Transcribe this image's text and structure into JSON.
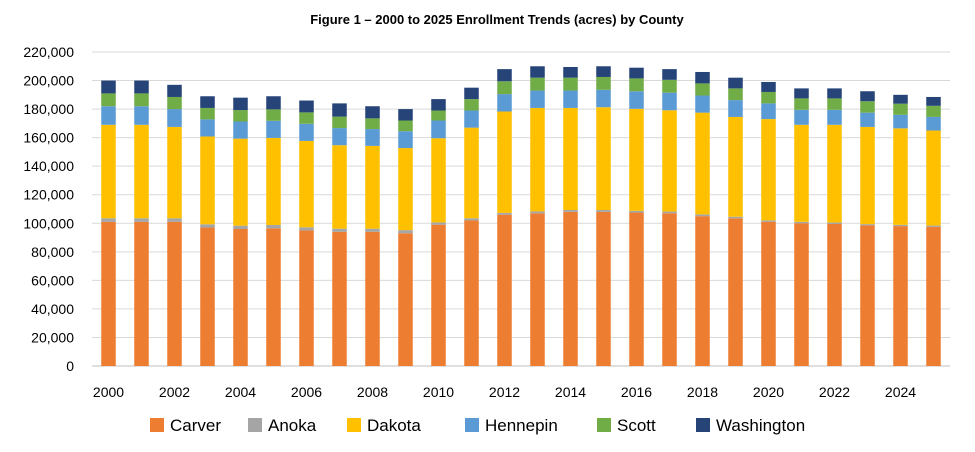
{
  "chart_data": {
    "type": "bar",
    "stacked": true,
    "title": "Figure 1 – 2000 to 2025 Enrollment Trends (acres) by County",
    "xlabel": "",
    "ylabel": "",
    "ylim": [
      0,
      220000
    ],
    "ytick_step": 20000,
    "ytick_labels": [
      "0",
      "20,000",
      "40,000",
      "60,000",
      "80,000",
      "100,000",
      "120,000",
      "140,000",
      "160,000",
      "180,000",
      "200,000",
      "220,000"
    ],
    "xtick_labels": [
      "2000",
      "2002",
      "2004",
      "2006",
      "2008",
      "2010",
      "2012",
      "2014",
      "2016",
      "2018",
      "2020",
      "2022",
      "2024"
    ],
    "grid": true,
    "legend_position": "bottom",
    "categories": [
      "2000",
      "2001",
      "2002",
      "2003",
      "2004",
      "2005",
      "2006",
      "2007",
      "2008",
      "2009",
      "2010",
      "2011",
      "2012",
      "2013",
      "2014",
      "2015",
      "2016",
      "2017",
      "2018",
      "2019",
      "2020",
      "2021",
      "2022",
      "2023",
      "2024",
      "2025"
    ],
    "series": [
      {
        "name": "Carver",
        "color": "#ED7D31",
        "values": [
          101000,
          101000,
          101000,
          97000,
          96000,
          96500,
          95000,
          94000,
          94000,
          93000,
          99000,
          102000,
          106000,
          107000,
          108000,
          108000,
          107500,
          107000,
          105000,
          103500,
          101000,
          100000,
          99500,
          98500,
          98000,
          97500
        ]
      },
      {
        "name": "Anoka",
        "color": "#A5A5A5",
        "values": [
          2500,
          2500,
          2500,
          2300,
          2300,
          2300,
          2200,
          2200,
          2200,
          2200,
          1600,
          1500,
          1300,
          1300,
          1300,
          1300,
          1200,
          1200,
          1200,
          1100,
          1000,
          1000,
          1000,
          900,
          900,
          900
        ]
      },
      {
        "name": "Dakota",
        "color": "#FFC000",
        "values": [
          65500,
          65500,
          64000,
          61500,
          61000,
          61000,
          60500,
          58500,
          58000,
          57500,
          59000,
          63500,
          71000,
          72500,
          71500,
          72000,
          71500,
          71000,
          71300,
          69900,
          71000,
          68000,
          68500,
          68100,
          67600,
          66600
        ]
      },
      {
        "name": "Hennepin",
        "color": "#5B9BD5",
        "values": [
          13000,
          13000,
          12500,
          12000,
          12000,
          12000,
          12000,
          12000,
          11800,
          11800,
          12400,
          12000,
          12200,
          12200,
          12200,
          12200,
          12300,
          12300,
          12000,
          11800,
          11000,
          10500,
          10500,
          10000,
          9500,
          9500
        ]
      },
      {
        "name": "Scott",
        "color": "#70AD47",
        "values": [
          9000,
          9000,
          8500,
          8000,
          8000,
          8000,
          8000,
          8000,
          7500,
          7500,
          7000,
          8000,
          9000,
          9000,
          9000,
          9000,
          9000,
          9000,
          8500,
          8200,
          8000,
          8000,
          8000,
          8000,
          7800,
          7800
        ]
      },
      {
        "name": "Washington",
        "color": "#264478",
        "values": [
          9000,
          9000,
          8500,
          8200,
          8700,
          9200,
          8300,
          9300,
          8500,
          8000,
          8000,
          8000,
          8500,
          8000,
          7500,
          7500,
          7500,
          7500,
          8000,
          7500,
          7000,
          7000,
          7000,
          7000,
          6200,
          6200
        ]
      }
    ]
  }
}
